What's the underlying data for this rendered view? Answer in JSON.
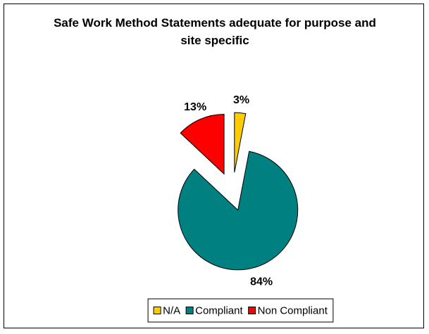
{
  "chart_data": {
    "type": "pie",
    "title": "Safe Work Method Statements adequate for purpose and site specific",
    "categories": [
      "N/A",
      "Compliant",
      "Non Compliant"
    ],
    "values": [
      3,
      84,
      13
    ],
    "value_labels": [
      "3%",
      "84%",
      "13%"
    ],
    "colors": [
      "#ffcc00",
      "#008080",
      "#ff0000"
    ],
    "legend": "bottom"
  }
}
